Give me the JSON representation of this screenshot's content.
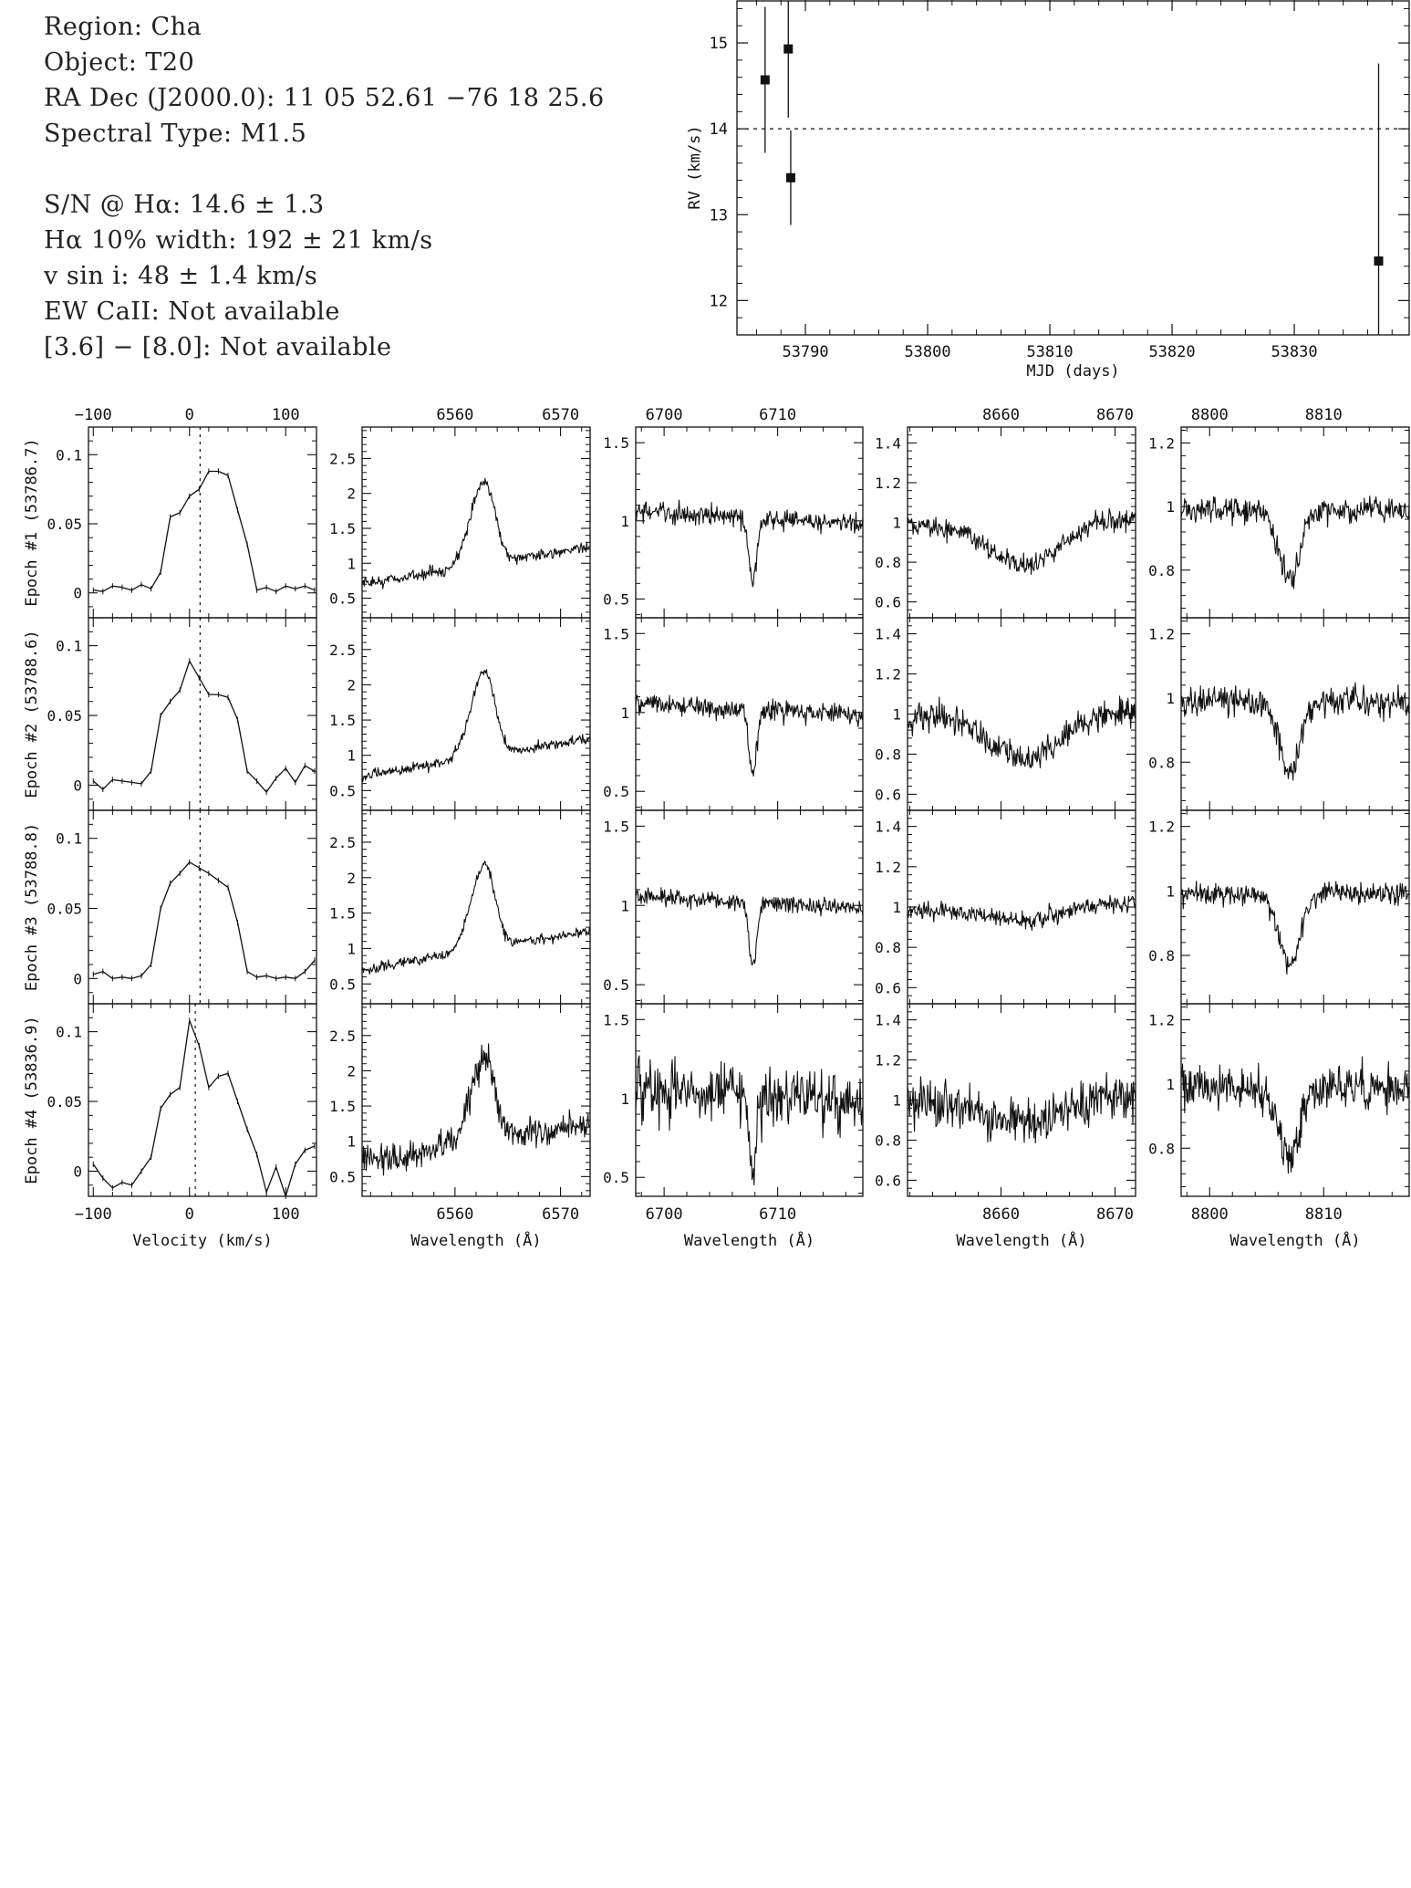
{
  "info": {
    "region": "Region: Cha",
    "object": "Object: T20",
    "radec": "RA Dec (J2000.0): 11 05 52.61 −76 18 25.6",
    "sptype": "Spectral Type: M1.5",
    "sn": "S/N @ Hα: 14.6 ± 1.3",
    "width": "Hα 10% width: 192 ± 21 km/s",
    "vsini": "v sin i: 48 ± 1.4 km/s",
    "ewcaii": "EW CaII: Not available",
    "irac": "[3.6] − [8.0]: Not available"
  },
  "chart_data": [
    {
      "type": "scatter",
      "xlabel": "MJD (days)",
      "ylabel": "RV (km/s)",
      "xlim": [
        53784.4,
        53839.4
      ],
      "ylim": [
        11.6,
        15.5
      ],
      "xticks": [
        53790,
        53800,
        53810,
        53820,
        53830
      ],
      "yticks": [
        12,
        13,
        14,
        15
      ],
      "reference_line": 14.0,
      "points": [
        {
          "x": 53786.7,
          "y": 14.57,
          "err": 0.85
        },
        {
          "x": 53788.6,
          "y": 14.93,
          "err": 0.8
        },
        {
          "x": 53788.8,
          "y": 13.43,
          "err": 0.55
        },
        {
          "x": 53836.9,
          "y": 12.46,
          "err": 2.3
        }
      ]
    },
    {
      "type": "line",
      "epochs": [
        "Epoch #1 (53786.7)",
        "Epoch #2 (53788.6)",
        "Epoch #3 (53788.8)",
        "Epoch #4 (53836.9)"
      ],
      "columns": [
        {
          "id": "velocity",
          "xlabel": "Velocity (km/s)",
          "xlim": [
            -105,
            132
          ],
          "xticks": [
            -100,
            0,
            100
          ],
          "ylim": [
            -0.018,
            0.12
          ],
          "yticks": [
            0,
            0.05,
            0.1
          ],
          "ytick_labels": [
            "0",
            "0.05",
            "0.1"
          ],
          "vlines": [
            11,
            11,
            11,
            6
          ],
          "series": [
            {
              "x": [
                -100,
                -90,
                -80,
                -70,
                -60,
                -50,
                -40,
                -30,
                -20,
                -10,
                0,
                10,
                20,
                30,
                40,
                50,
                60,
                70,
                80,
                90,
                100,
                110,
                120,
                130
              ],
              "y": [
                0.002,
                0.001,
                0.005,
                0.004,
                0.002,
                0.006,
                0.003,
                0.015,
                0.055,
                0.058,
                0.07,
                0.075,
                0.088,
                0.088,
                0.085,
                0.06,
                0.035,
                0.002,
                0.004,
                0.001,
                0.005,
                0.003,
                0.005,
                0.002
              ]
            },
            {
              "x": [
                -100,
                -90,
                -80,
                -70,
                -60,
                -50,
                -40,
                -30,
                -20,
                -10,
                0,
                10,
                20,
                30,
                40,
                50,
                60,
                70,
                80,
                90,
                100,
                110,
                120,
                130
              ],
              "y": [
                0.003,
                -0.003,
                0.004,
                0.003,
                0.002,
                0.001,
                0.01,
                0.05,
                0.06,
                0.068,
                0.089,
                0.077,
                0.065,
                0.065,
                0.063,
                0.047,
                0.01,
                0.003,
                -0.005,
                0.005,
                0.012,
                0.002,
                0.014,
                0.01
              ]
            },
            {
              "x": [
                -100,
                -90,
                -80,
                -70,
                -60,
                -50,
                -40,
                -30,
                -20,
                -10,
                0,
                10,
                20,
                30,
                40,
                50,
                60,
                70,
                80,
                90,
                100,
                110,
                120,
                130
              ],
              "y": [
                0.003,
                0.005,
                0.0,
                0.001,
                0.0,
                0.002,
                0.01,
                0.05,
                0.068,
                0.075,
                0.083,
                0.079,
                0.075,
                0.07,
                0.065,
                0.04,
                0.005,
                0.001,
                0.002,
                0.0,
                0.001,
                0.0,
                0.005,
                0.013
              ]
            },
            {
              "x": [
                -100,
                -90,
                -80,
                -70,
                -60,
                -50,
                -40,
                -30,
                -20,
                -10,
                0,
                10,
                20,
                30,
                40,
                50,
                60,
                70,
                80,
                90,
                100,
                110,
                120,
                130
              ],
              "y": [
                0.005,
                -0.005,
                -0.012,
                -0.008,
                -0.01,
                0.0,
                0.01,
                0.045,
                0.055,
                0.06,
                0.108,
                0.09,
                0.06,
                0.068,
                0.07,
                0.05,
                0.03,
                0.012,
                -0.015,
                0.003,
                -0.018,
                0.005,
                0.015,
                0.018
              ]
            }
          ]
        },
        {
          "id": "halpha",
          "xlabel": "Wavelength (Å)",
          "xlim": [
            6551.2,
            6572.8
          ],
          "xticks": [
            6560,
            6570
          ],
          "ylim": [
            0.22,
            2.95
          ],
          "yticks": [
            0.5,
            1,
            1.5,
            2,
            2.5
          ],
          "ytick_labels": [
            "0.5",
            "1",
            "1.5",
            "2",
            "2.5"
          ],
          "profile": {
            "kind": "emission",
            "continuum": 0.97,
            "slope": 0.025,
            "center": 6562.8,
            "depth": 1.2,
            "sigma": 1.3
          },
          "noise": [
            0.07,
            0.06,
            0.06,
            0.18
          ]
        },
        {
          "id": "lithium",
          "xlabel": "Wavelength (Å)",
          "xlim": [
            6697.5,
            6717.5
          ],
          "xticks": [
            6700,
            6710
          ],
          "ylim": [
            0.38,
            1.6
          ],
          "yticks": [
            0.5,
            1,
            1.5
          ],
          "ytick_labels": [
            "0.5",
            "1",
            "1.5"
          ],
          "profile": {
            "kind": "absorption",
            "continuum": 1.02,
            "slope": -0.004,
            "center": 6707.8,
            "depth": 0.4,
            "sigma": 0.35
          },
          "noise": [
            0.055,
            0.055,
            0.045,
            0.15
          ]
        },
        {
          "id": "caii",
          "xlabel": "Wavelength (Å)",
          "xlim": [
            8651.8,
            8671.8
          ],
          "xticks": [
            8660,
            8670
          ],
          "ylim": [
            0.52,
            1.48
          ],
          "yticks": [
            0.6,
            0.8,
            1,
            1.2,
            1.4
          ],
          "ytick_labels": [
            "0.6",
            "0.8",
            "1",
            "1.2",
            "1.4"
          ],
          "profile": {
            "kind": "broad",
            "continuum": 1.0,
            "slope": 0.002,
            "center": 8662.1,
            "depth": 0.22,
            "sigma": 3.0
          },
          "noise": [
            0.045,
            0.06,
            0.035,
            0.09
          ]
        },
        {
          "id": "nearir",
          "xlabel": "Wavelength (Å)",
          "xlim": [
            8797.5,
            8817.5
          ],
          "xticks": [
            8800,
            8810
          ],
          "ylim": [
            0.65,
            1.25
          ],
          "yticks": [
            0.8,
            1,
            1.2
          ],
          "ytick_labels": [
            "0.8",
            "1",
            "1.2"
          ],
          "profile": {
            "kind": "absorption",
            "continuum": 0.99,
            "slope": 0.0,
            "center": 8807.0,
            "depth": 0.22,
            "sigma": 0.9
          },
          "noise": [
            0.035,
            0.04,
            0.03,
            0.055
          ]
        }
      ]
    }
  ]
}
